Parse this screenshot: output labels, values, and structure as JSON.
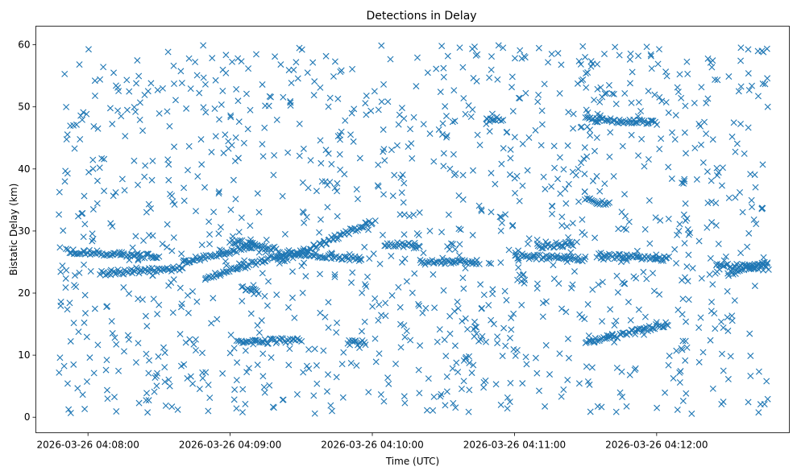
{
  "chart_data": {
    "type": "scatter",
    "title": "Detections in Delay",
    "xlabel": "Time (UTC)",
    "ylabel": "Bistatic Delay (km)",
    "marker": "x",
    "color": "#1f77b4",
    "grid": false,
    "x_tick_labels": [
      "2026-03-26 04:08:00",
      "2026-03-26 04:09:00",
      "2026-03-26 04:10:00",
      "2026-03-26 04:11:00",
      "2026-03-26 04:12:00"
    ],
    "y_ticks": [
      0,
      10,
      20,
      30,
      40,
      50,
      60
    ],
    "xlim": [
      "04:07:38",
      "04:12:56"
    ],
    "ylim": [
      -2.5,
      63
    ],
    "time_span": [
      "04:07:47",
      "04:12:47"
    ],
    "delay_range": [
      0.5,
      60
    ],
    "tracks": [
      {
        "from": [
          "04:07:51",
          26.8
        ],
        "to": [
          "04:08:30",
          25.8
        ]
      },
      {
        "from": [
          "04:08:05",
          23.2
        ],
        "to": [
          "04:08:40",
          24.0
        ]
      },
      {
        "from": [
          "04:08:40",
          25.0
        ],
        "to": [
          "04:09:10",
          27.5
        ]
      },
      {
        "from": [
          "04:08:50",
          22.5
        ],
        "to": [
          "04:09:25",
          26.5
        ]
      },
      {
        "from": [
          "04:09:00",
          28.5
        ],
        "to": [
          "04:09:20",
          27.0
        ]
      },
      {
        "from": [
          "04:09:05",
          21.0
        ],
        "to": [
          "04:09:12",
          20.0
        ]
      },
      {
        "from": [
          "04:09:03",
          12.0
        ],
        "to": [
          "04:09:30",
          12.5
        ]
      },
      {
        "from": [
          "04:09:20",
          25.0
        ],
        "to": [
          "04:10:00",
          31.5
        ]
      },
      {
        "from": [
          "04:09:25",
          26.5
        ],
        "to": [
          "04:09:55",
          25.5
        ]
      },
      {
        "from": [
          "04:09:50",
          12.0
        ],
        "to": [
          "04:09:57",
          12.0
        ]
      },
      {
        "from": [
          "04:10:05",
          28.0
        ],
        "to": [
          "04:10:20",
          27.5
        ]
      },
      {
        "from": [
          "04:10:20",
          25.0
        ],
        "to": [
          "04:10:45",
          25.0
        ]
      },
      {
        "from": [
          "04:10:48",
          48.0
        ],
        "to": [
          "04:10:55",
          48.0
        ]
      },
      {
        "from": [
          "04:11:00",
          26.0
        ],
        "to": [
          "04:11:30",
          25.5
        ]
      },
      {
        "from": [
          "04:11:10",
          27.5
        ],
        "to": [
          "04:11:25",
          28.0
        ]
      },
      {
        "from": [
          "04:11:30",
          35.0
        ],
        "to": [
          "04:11:40",
          34.5
        ]
      },
      {
        "from": [
          "04:11:30",
          48.0
        ],
        "to": [
          "04:12:00",
          47.5
        ]
      },
      {
        "from": [
          "04:11:35",
          26.0
        ],
        "to": [
          "04:12:05",
          25.5
        ]
      },
      {
        "from": [
          "04:11:30",
          12.0
        ],
        "to": [
          "04:12:05",
          15.0
        ]
      },
      {
        "from": [
          "04:12:25",
          24.5
        ],
        "to": [
          "04:12:47",
          24.0
        ]
      },
      {
        "from": [
          "04:12:30",
          23.0
        ],
        "to": [
          "04:12:47",
          25.0
        ]
      }
    ]
  }
}
